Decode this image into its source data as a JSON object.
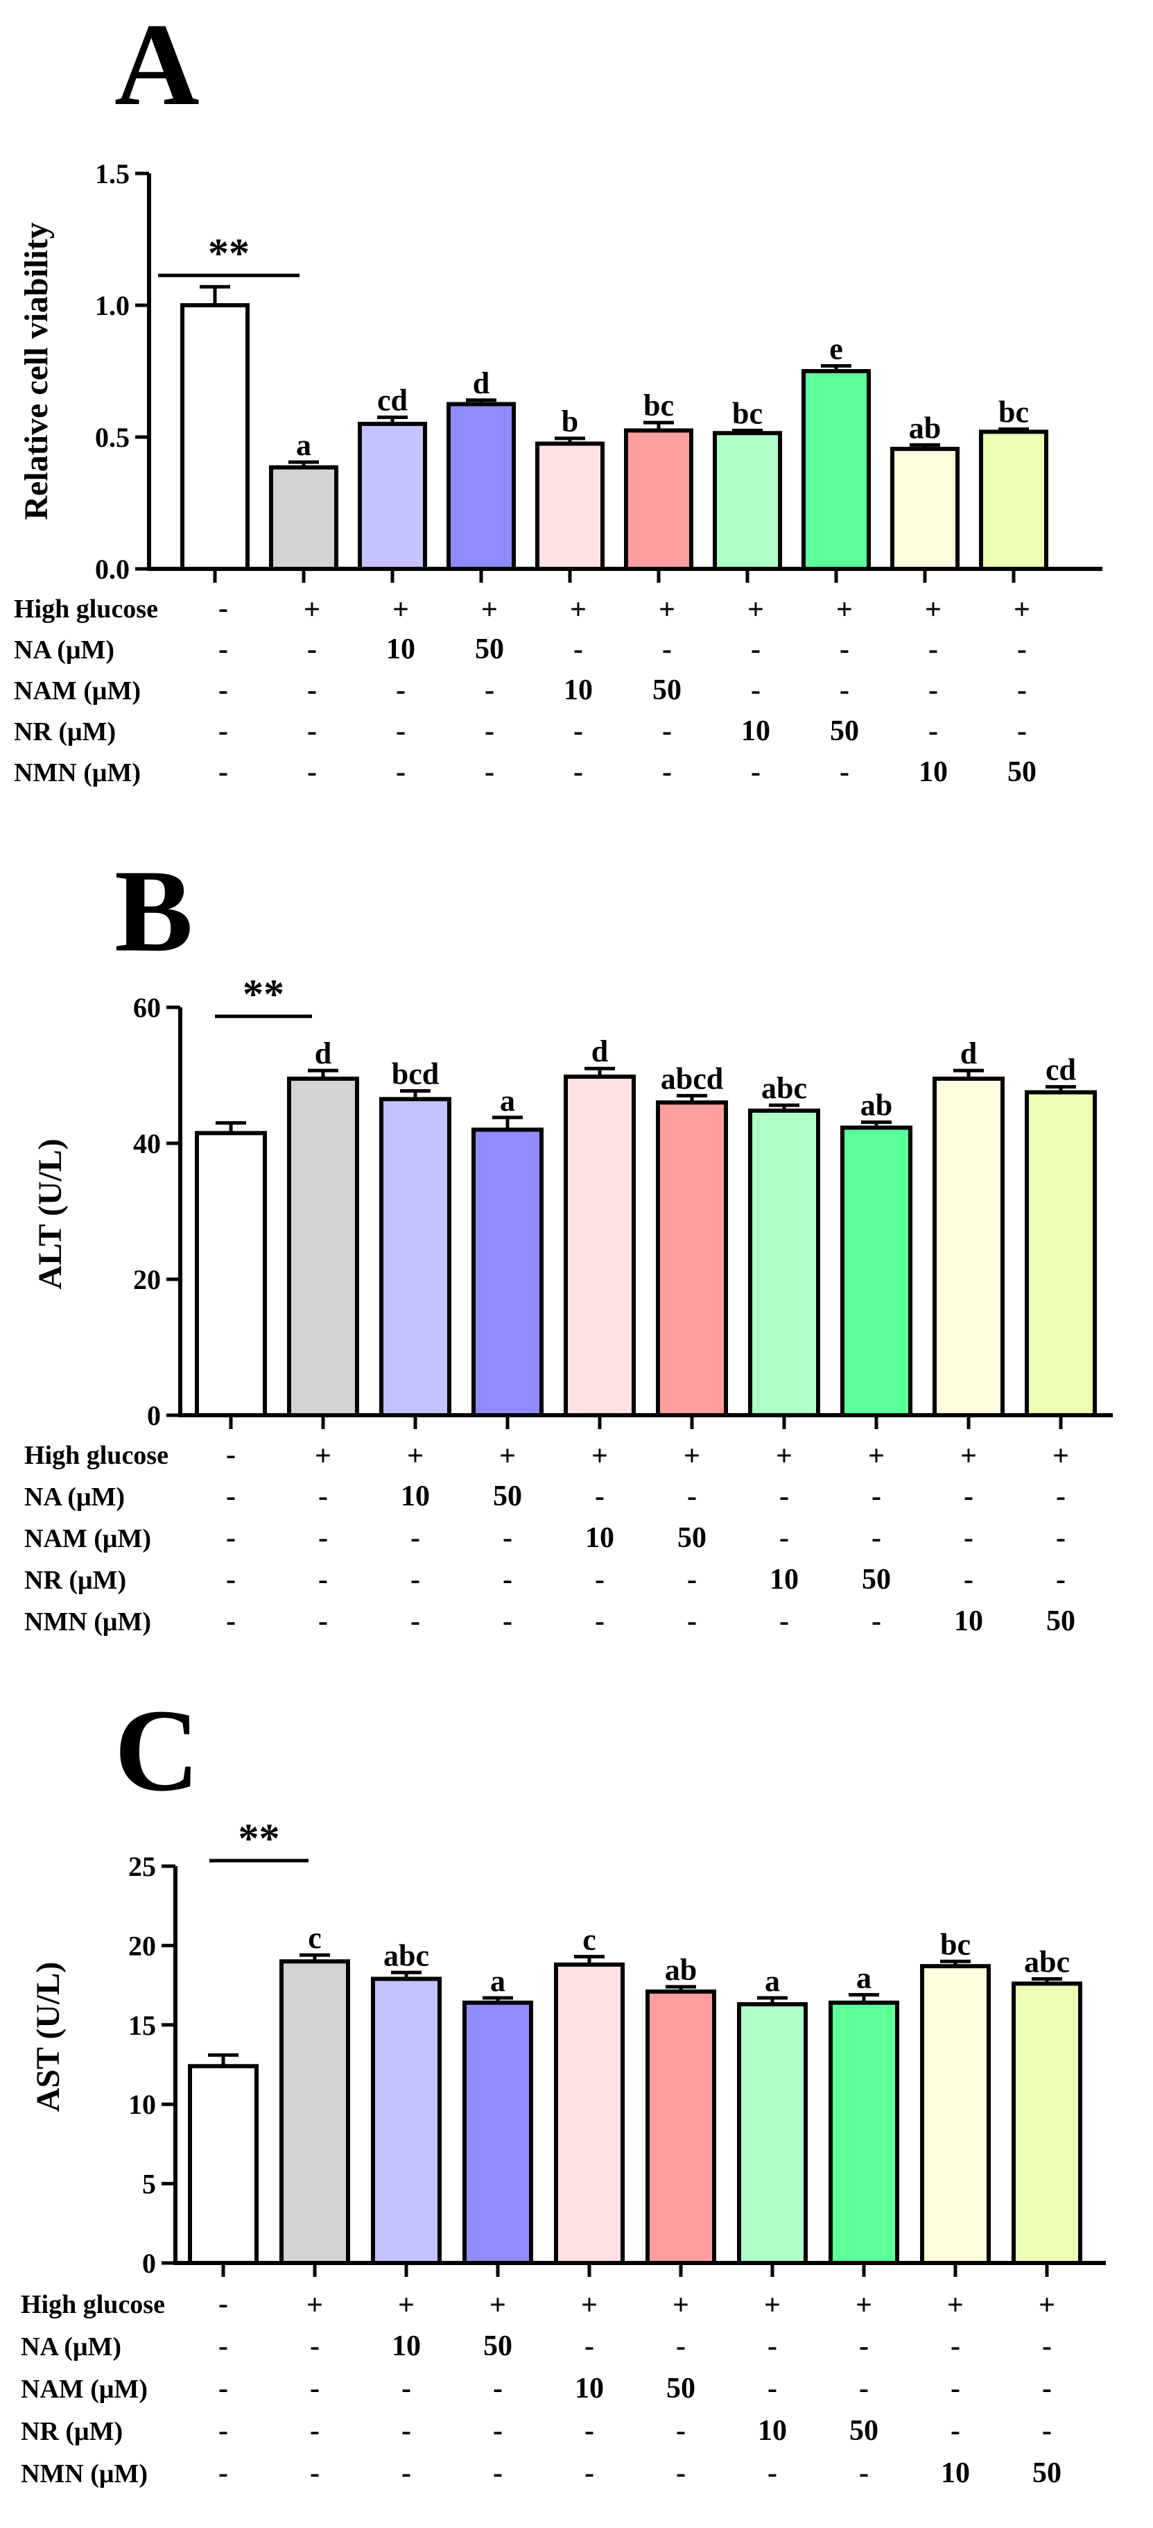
{
  "treatment_table": {
    "rows": [
      {
        "label": "High glucose",
        "values": [
          "-",
          "+",
          "+",
          "+",
          "+",
          "+",
          "+",
          "+",
          "+",
          "+"
        ]
      },
      {
        "label": "NA (μM)",
        "values": [
          "-",
          "-",
          "10",
          "50",
          "-",
          "-",
          "-",
          "-",
          "-",
          "-"
        ]
      },
      {
        "label": "NAM (μM)",
        "values": [
          "-",
          "-",
          "-",
          "-",
          "10",
          "50",
          "-",
          "-",
          "-",
          "-"
        ]
      },
      {
        "label": "NR (μM)",
        "values": [
          "-",
          "-",
          "-",
          "-",
          "-",
          "-",
          "10",
          "50",
          "-",
          "-"
        ]
      },
      {
        "label": "NMN (μM)",
        "values": [
          "-",
          "-",
          "-",
          "-",
          "-",
          "-",
          "-",
          "-",
          "10",
          "50"
        ]
      }
    ]
  },
  "bar_colors": [
    "#ffffff",
    "#d3d3d3",
    "#c4c2ff",
    "#8f8cff",
    "#ffe1e4",
    "#ff9e9e",
    "#afffc9",
    "#5cff98",
    "#fdfdde",
    "#edffb5"
  ],
  "chart_data": [
    {
      "type": "bar",
      "panel_label": "A",
      "ylabel": "Relative cell  viability",
      "ylim": [
        0,
        1.5
      ],
      "yticks": [
        "0.0",
        "0.5",
        "1.0",
        "1.5"
      ],
      "ytick_values": [
        0,
        0.5,
        1.0,
        1.5
      ],
      "values": [
        1.0,
        0.385,
        0.55,
        0.625,
        0.475,
        0.525,
        0.515,
        0.75,
        0.455,
        0.52
      ],
      "errors": [
        0.07,
        0.02,
        0.025,
        0.015,
        0.02,
        0.03,
        0.01,
        0.02,
        0.015,
        0.01
      ],
      "letters": [
        "",
        "a",
        "cd",
        "d",
        "b",
        "bc",
        "bc",
        "e",
        "ab",
        "bc"
      ],
      "significance": "**"
    },
    {
      "type": "bar",
      "panel_label": "B",
      "ylabel": "ALT (U/L)",
      "ylim": [
        0,
        60
      ],
      "yticks": [
        "0",
        "20",
        "40",
        "60"
      ],
      "ytick_values": [
        0,
        20,
        40,
        60
      ],
      "values": [
        41.5,
        49.5,
        46.5,
        42.0,
        49.8,
        46.0,
        44.8,
        42.3,
        49.5,
        47.5
      ],
      "errors": [
        1.5,
        1.2,
        1.2,
        1.8,
        1.2,
        1.0,
        0.8,
        0.8,
        1.2,
        0.8
      ],
      "letters": [
        "",
        "d",
        "bcd",
        "a",
        "d",
        "abcd",
        "abc",
        "ab",
        "d",
        "cd"
      ],
      "significance": "**"
    },
    {
      "type": "bar",
      "panel_label": "C",
      "ylabel": "AST (U/L)",
      "ylim": [
        0,
        25
      ],
      "yticks": [
        "0",
        "5",
        "10",
        "15",
        "20",
        "25"
      ],
      "ytick_values": [
        0,
        5,
        10,
        15,
        20,
        25
      ],
      "values": [
        12.4,
        19.0,
        17.9,
        16.4,
        18.8,
        17.1,
        16.3,
        16.4,
        18.7,
        17.6
      ],
      "errors": [
        0.7,
        0.4,
        0.4,
        0.3,
        0.5,
        0.3,
        0.4,
        0.5,
        0.3,
        0.3
      ],
      "letters": [
        "",
        "c",
        "abc",
        "a",
        "c",
        "ab",
        "a",
        "a",
        "bc",
        "abc"
      ],
      "significance": "**"
    }
  ]
}
